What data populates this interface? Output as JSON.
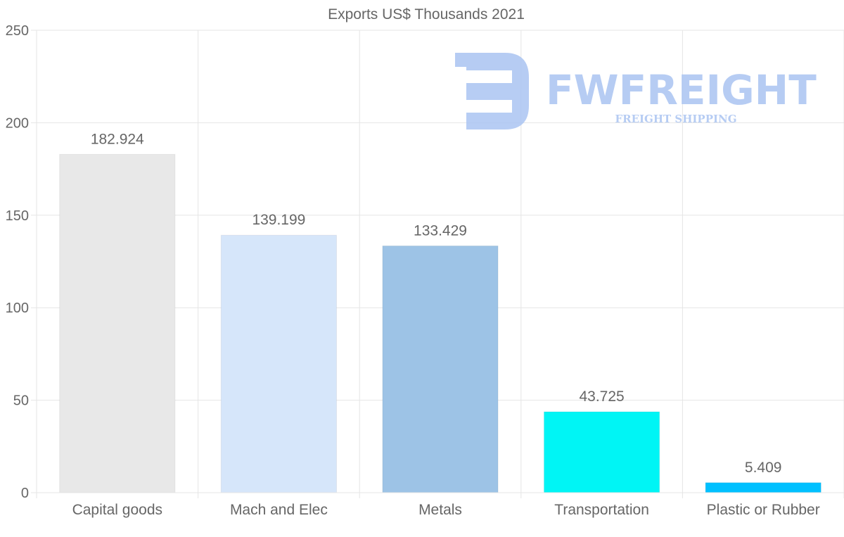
{
  "chart_data": {
    "type": "bar",
    "title": "Exports US$ Thousands 2021",
    "categories": [
      "Capital goods",
      "Mach and Elec",
      "Metals",
      "Transportation",
      "Plastic or Rubber"
    ],
    "values": [
      182.924,
      139.199,
      133.429,
      43.725,
      5.409
    ],
    "value_labels": [
      "182.924",
      "139.199",
      "133.429",
      "43.725",
      "5.409"
    ],
    "colors": [
      "#e8e8e8",
      "#d6e6fa",
      "#9dc3e6",
      "#00f5f5",
      "#00c0ff"
    ],
    "ylim": [
      0,
      250
    ],
    "yticks": [
      0,
      50,
      100,
      150,
      200,
      250
    ],
    "xlabel": "",
    "ylabel": "",
    "grid": true,
    "legend": "none"
  },
  "watermark": {
    "brand": "FWFREIGHT",
    "tagline": "FREIGHT SHIPPING",
    "color": "#aac4f2"
  }
}
